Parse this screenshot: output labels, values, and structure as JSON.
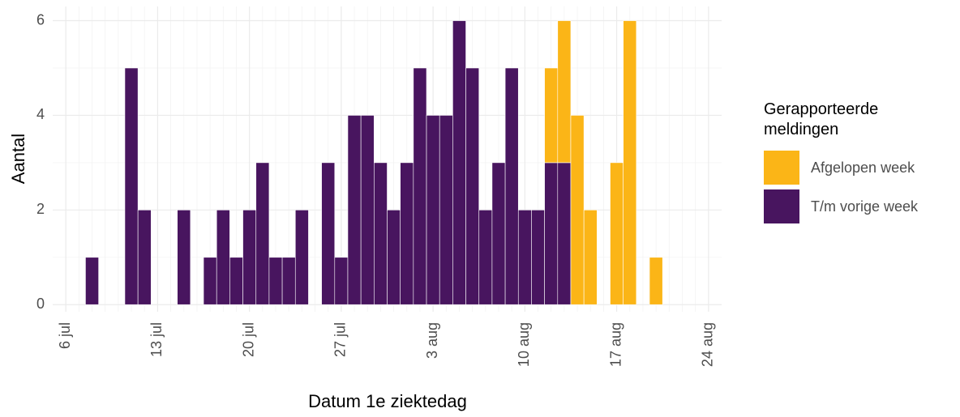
{
  "chart_data": {
    "type": "bar",
    "stacked": true,
    "x_label": "Datum 1e ziektedag",
    "y_label": "Aantal",
    "legend_title": "Gerapporteerde meldingen",
    "legend_position": "right",
    "x": [
      "07-08",
      "07-11",
      "07-12",
      "07-15",
      "07-17",
      "07-18",
      "07-19",
      "07-20",
      "07-21",
      "07-22",
      "07-23",
      "07-24",
      "07-26",
      "07-27",
      "07-28",
      "07-29",
      "07-30",
      "07-31",
      "08-01",
      "08-02",
      "08-03",
      "08-04",
      "08-05",
      "08-06",
      "08-07",
      "08-08",
      "08-09",
      "08-10",
      "08-11",
      "08-12",
      "08-13",
      "08-14",
      "08-15",
      "08-17",
      "08-18",
      "08-20"
    ],
    "series": [
      {
        "name": "Afgelopen week",
        "color": "#fbb517",
        "values": [
          0,
          0,
          0,
          0,
          0,
          0,
          0,
          0,
          0,
          0,
          0,
          0,
          0,
          0,
          0,
          0,
          0,
          0,
          0,
          0,
          0,
          0,
          0,
          0,
          0,
          0,
          0,
          0,
          0,
          2,
          3,
          4,
          2,
          3,
          6,
          1
        ]
      },
      {
        "name": "T/m vorige week",
        "color": "#48155f",
        "values": [
          1,
          5,
          2,
          2,
          1,
          2,
          1,
          2,
          3,
          1,
          1,
          2,
          3,
          1,
          4,
          4,
          3,
          2,
          3,
          5,
          4,
          4,
          6,
          5,
          2,
          3,
          5,
          2,
          2,
          3,
          3,
          0,
          0,
          0,
          0,
          0
        ]
      }
    ],
    "stack_order": "last-at-bottom",
    "xlim": [
      "07-05",
      "08-25"
    ],
    "xticks": [
      {
        "value": "07-06",
        "label": "6 jul"
      },
      {
        "value": "07-13",
        "label": "13 jul"
      },
      {
        "value": "07-20",
        "label": "20 jul"
      },
      {
        "value": "07-27",
        "label": "27 jul"
      },
      {
        "value": "08-03",
        "label": "3 aug"
      },
      {
        "value": "08-10",
        "label": "10 aug"
      },
      {
        "value": "08-17",
        "label": "17 aug"
      },
      {
        "value": "08-24",
        "label": "24 aug"
      }
    ],
    "ylim": [
      -0.15,
      6.3
    ],
    "yticks": [
      0,
      2,
      4,
      6
    ],
    "grid": true
  }
}
